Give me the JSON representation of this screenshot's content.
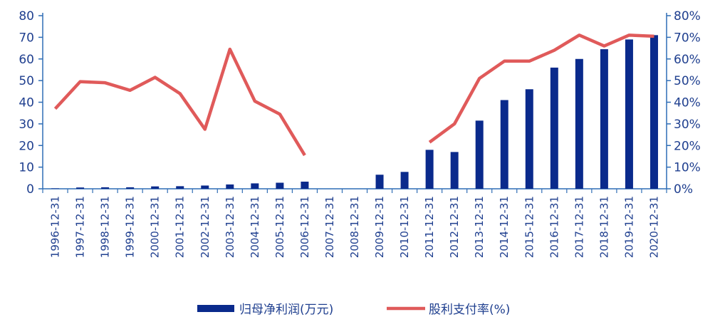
{
  "chart_data": {
    "type": "bar",
    "categories": [
      "1996-12-31",
      "1997-12-31",
      "1998-12-31",
      "1999-12-31",
      "2000-12-31",
      "2001-12-31",
      "2002-12-31",
      "2003-12-31",
      "2004-12-31",
      "2005-12-31",
      "2006-12-31",
      "2007-12-31",
      "2008-12-31",
      "2009-12-31",
      "2010-12-31",
      "2011-12-31",
      "2012-12-31",
      "2013-12-31",
      "2014-12-31",
      "2015-12-31",
      "2016-12-31",
      "2017-12-31",
      "2018-12-31",
      "2019-12-31",
      "2020-12-31"
    ],
    "series": [
      {
        "name": "归母净利润(万元)",
        "type": "bar",
        "axis": "left",
        "color": "#0a2a8c",
        "values": [
          0.2,
          0.6,
          0.7,
          0.7,
          1.1,
          1.2,
          1.5,
          2.0,
          2.5,
          2.8,
          3.3,
          null,
          null,
          6.5,
          7.8,
          18.0,
          17.0,
          31.5,
          41.0,
          46.0,
          56.0,
          60.0,
          64.5,
          69.0,
          71.0
        ]
      },
      {
        "name": "股利支付率(%)",
        "type": "line",
        "axis": "right",
        "color": "#e05a5a",
        "values": [
          37.0,
          49.5,
          49.0,
          45.5,
          51.5,
          44.0,
          27.5,
          64.5,
          40.5,
          34.5,
          15.5,
          null,
          null,
          null,
          null,
          21.5,
          30.0,
          51.0,
          59.0,
          59.0,
          64.0,
          71.0,
          66.0,
          71.0,
          70.5
        ]
      }
    ],
    "left_axis": {
      "ylim": [
        0,
        80
      ],
      "ticks": [
        "0",
        "10",
        "20",
        "30",
        "40",
        "50",
        "60",
        "70",
        "80"
      ]
    },
    "right_axis": {
      "ylim": [
        0,
        0.8
      ],
      "ticks": [
        "0%",
        "10%",
        "20%",
        "30%",
        "40%",
        "50%",
        "60%",
        "70%",
        "80%"
      ]
    },
    "legend": {
      "placement": "bottom"
    },
    "grid": false,
    "axis_color": "#2f6db5"
  }
}
